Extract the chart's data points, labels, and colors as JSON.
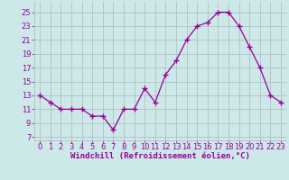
{
  "x": [
    0,
    1,
    2,
    3,
    4,
    5,
    6,
    7,
    8,
    9,
    10,
    11,
    12,
    13,
    14,
    15,
    16,
    17,
    18,
    19,
    20,
    21,
    22,
    23
  ],
  "y": [
    13,
    12,
    11,
    11,
    11,
    10,
    10,
    8,
    11,
    11,
    14,
    12,
    16,
    18,
    21,
    23,
    23.5,
    25,
    25,
    23,
    20,
    17,
    13,
    12
  ],
  "x_labels": [
    "0",
    "1",
    "2",
    "3",
    "4",
    "5",
    "6",
    "7",
    "8",
    "9",
    "10",
    "11",
    "12",
    "13",
    "14",
    "15",
    "16",
    "17",
    "18",
    "19",
    "20",
    "21",
    "22",
    "23"
  ],
  "y_ticks": [
    7,
    9,
    11,
    13,
    15,
    17,
    19,
    21,
    23,
    25
  ],
  "ylim": [
    6.5,
    26.5
  ],
  "xlim": [
    -0.5,
    23.5
  ],
  "xlabel": "Windchill (Refroidissement éolien,°C)",
  "line_color": "#990099",
  "marker": "+",
  "marker_size": 4,
  "bg_color": "#cce8e8",
  "grid_color": "#b0b8b8",
  "xlabel_color": "#990099",
  "tick_color": "#990099",
  "font_size_xlabel": 6.5,
  "font_size_tick": 6.0
}
